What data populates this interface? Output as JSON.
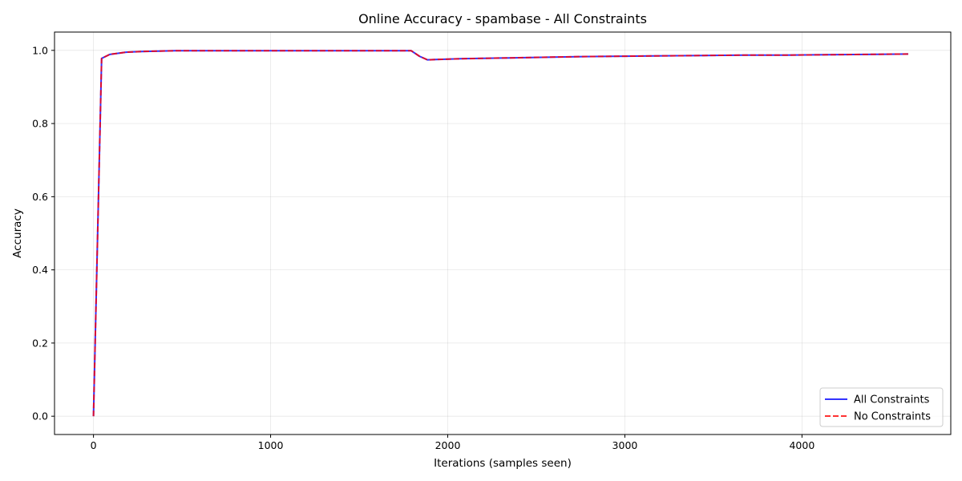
{
  "chart_data": {
    "type": "line",
    "title": "Online Accuracy - spambase - All Constraints",
    "xlabel": "Iterations (samples seen)",
    "ylabel": "Accuracy",
    "xlim": [
      -220,
      4840
    ],
    "ylim": [
      -0.05,
      1.05
    ],
    "xticks": [
      0,
      1000,
      2000,
      3000,
      4000
    ],
    "xtick_labels": [
      "0",
      "1000",
      "2000",
      "3000",
      "4000"
    ],
    "yticks": [
      0.0,
      0.2,
      0.4,
      0.6,
      0.8,
      1.0
    ],
    "ytick_labels": [
      "0.0",
      "0.2",
      "0.4",
      "0.6",
      "0.8",
      "1.0"
    ],
    "grid": true,
    "legend_position": "lower-right",
    "series": [
      {
        "name": "All Constraints",
        "color": "#0000ff",
        "style": "solid",
        "x": [
          0,
          46,
          92,
          138,
          184,
          230,
          276,
          368,
          460,
          690,
          920,
          1150,
          1380,
          1610,
          1794,
          1840,
          1886,
          1932,
          2070,
          2300,
          2530,
          2760,
          3000,
          3220,
          3450,
          3680,
          3910,
          4140,
          4370,
          4600
        ],
        "y": [
          0.0,
          0.978,
          0.989,
          0.992,
          0.995,
          0.996,
          0.997,
          0.998,
          0.999,
          0.999,
          0.999,
          0.999,
          0.999,
          0.999,
          0.999,
          0.984,
          0.974,
          0.975,
          0.977,
          0.979,
          0.981,
          0.983,
          0.984,
          0.985,
          0.986,
          0.987,
          0.987,
          0.988,
          0.989,
          0.99
        ]
      },
      {
        "name": "No Constraints",
        "color": "#ff0000",
        "style": "dashed",
        "x": [
          0,
          46,
          92,
          138,
          184,
          230,
          276,
          368,
          460,
          690,
          920,
          1150,
          1380,
          1610,
          1794,
          1840,
          1886,
          1932,
          2070,
          2300,
          2530,
          2760,
          3000,
          3220,
          3450,
          3680,
          3910,
          4140,
          4370,
          4600
        ],
        "y": [
          0.0,
          0.978,
          0.989,
          0.992,
          0.995,
          0.996,
          0.997,
          0.998,
          0.999,
          0.999,
          0.999,
          0.999,
          0.999,
          0.999,
          0.999,
          0.984,
          0.974,
          0.975,
          0.977,
          0.979,
          0.981,
          0.983,
          0.984,
          0.985,
          0.986,
          0.987,
          0.987,
          0.988,
          0.989,
          0.99
        ]
      }
    ]
  }
}
